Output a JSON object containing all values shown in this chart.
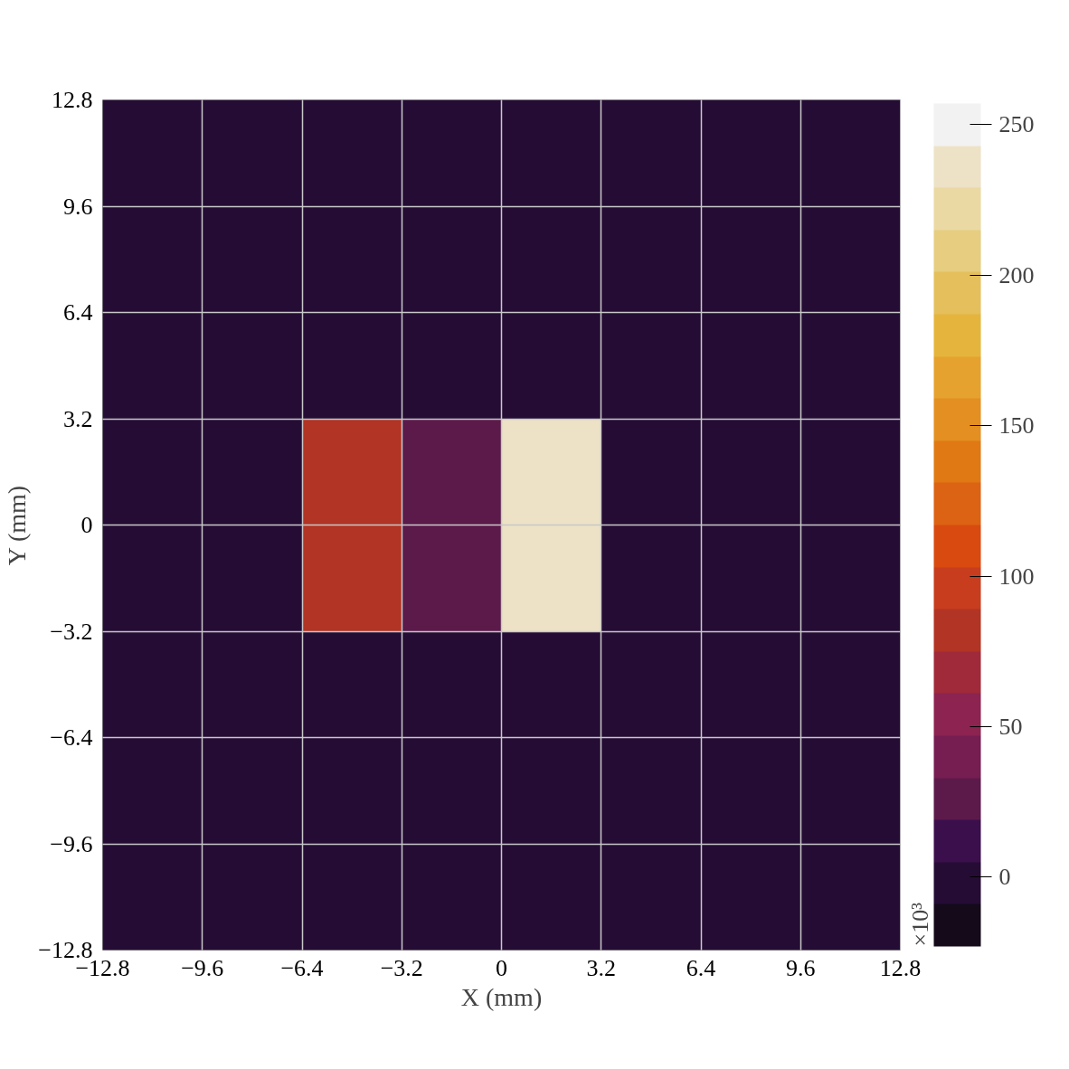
{
  "chart_data": {
    "type": "heatmap",
    "xlabel": "X (mm)",
    "ylabel": "Y (mm)",
    "clabel": "×10³",
    "xlim": [
      -12.8,
      12.8
    ],
    "ylim": [
      -12.8,
      12.8
    ],
    "xticks": [
      {
        "value": -12.8,
        "label": "−12.8"
      },
      {
        "value": -9.6,
        "label": "−9.6"
      },
      {
        "value": -6.4,
        "label": "−6.4"
      },
      {
        "value": -3.2,
        "label": "−3.2"
      },
      0,
      3.2,
      6.4,
      9.6,
      12.8
    ],
    "yticks": [
      {
        "value": -12.8,
        "label": "−12.8"
      },
      {
        "value": -9.6,
        "label": "−9.6"
      },
      {
        "value": -6.4,
        "label": "−6.4"
      },
      {
        "value": -3.2,
        "label": "−3.2"
      },
      0,
      3.2,
      6.4,
      9.6,
      12.8
    ],
    "clim": [
      -23,
      257
    ],
    "cticks": [
      0,
      50,
      100,
      150,
      200,
      250
    ],
    "grid": true,
    "cells": [
      [
        0,
        0,
        0,
        0,
        0,
        0,
        0,
        0
      ],
      [
        0,
        0,
        0,
        0,
        0,
        0,
        0,
        0
      ],
      [
        0,
        0,
        0,
        0,
        0,
        0,
        0,
        0
      ],
      [
        0,
        0,
        81,
        25,
        236,
        0,
        0,
        0
      ],
      [
        0,
        0,
        81,
        25,
        236,
        0,
        0,
        0
      ],
      [
        0,
        0,
        0,
        0,
        0,
        0,
        0,
        0
      ],
      [
        0,
        0,
        0,
        0,
        0,
        0,
        0,
        0
      ],
      [
        0,
        0,
        0,
        0,
        0,
        0,
        0,
        0
      ]
    ]
  }
}
